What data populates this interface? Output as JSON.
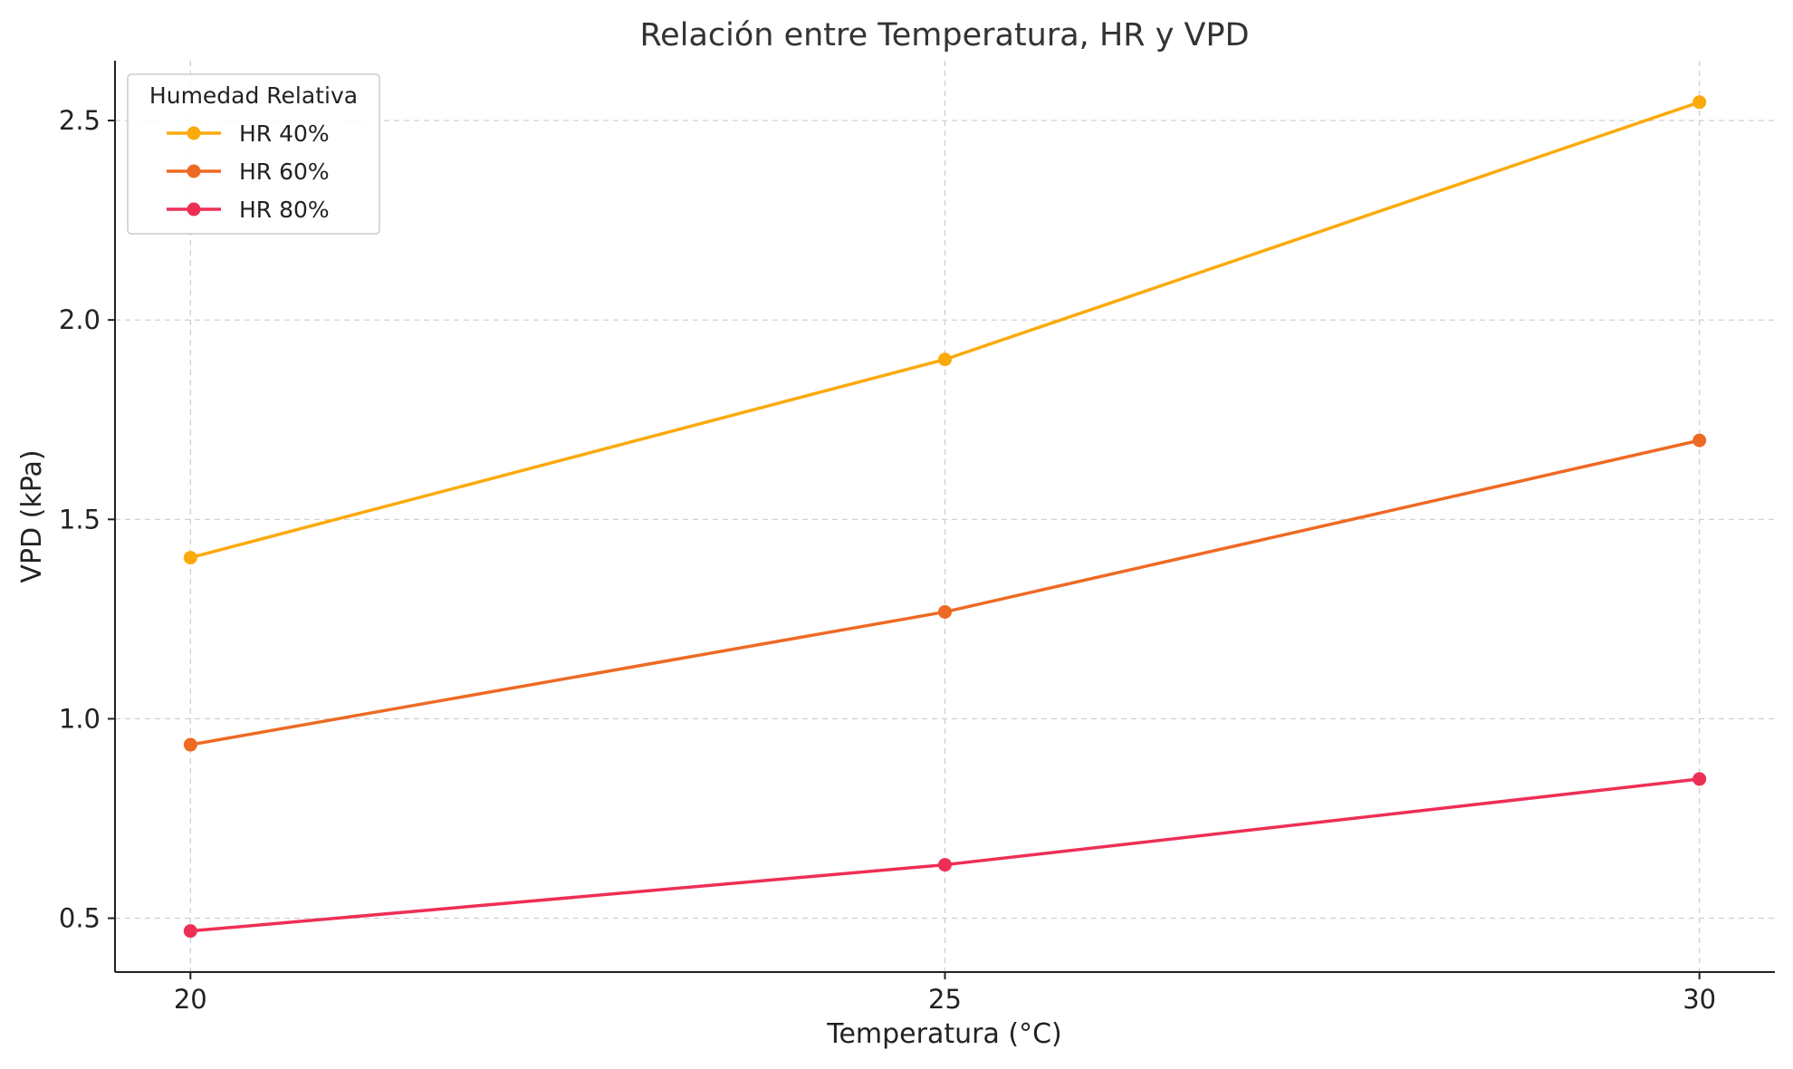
{
  "chart_data": {
    "type": "line",
    "title": "Relación entre Temperatura, HR y VPD",
    "xlabel": "Temperatura (°C)",
    "ylabel": "VPD (kPa)",
    "x": [
      20,
      25,
      30
    ],
    "x_ticks": [
      "20",
      "25",
      "30"
    ],
    "y_ticks": [
      "0.5",
      "1.0",
      "1.5",
      "2.0",
      "2.5"
    ],
    "xlim": [
      19.5,
      30.5
    ],
    "ylim": [
      0.365,
      2.65
    ],
    "grid": true,
    "legend": {
      "title": "Humedad Relativa",
      "placement": "top-left"
    },
    "series": [
      {
        "name": "HR 40%",
        "color": "#fbaa0c",
        "values": [
          1.404,
          1.901,
          2.546
        ]
      },
      {
        "name": "HR 60%",
        "color": "#ee6a24",
        "values": [
          0.935,
          1.268,
          1.698
        ]
      },
      {
        "name": "HR 80%",
        "color": "#ee2f55",
        "values": [
          0.468,
          0.634,
          0.849
        ]
      }
    ]
  }
}
